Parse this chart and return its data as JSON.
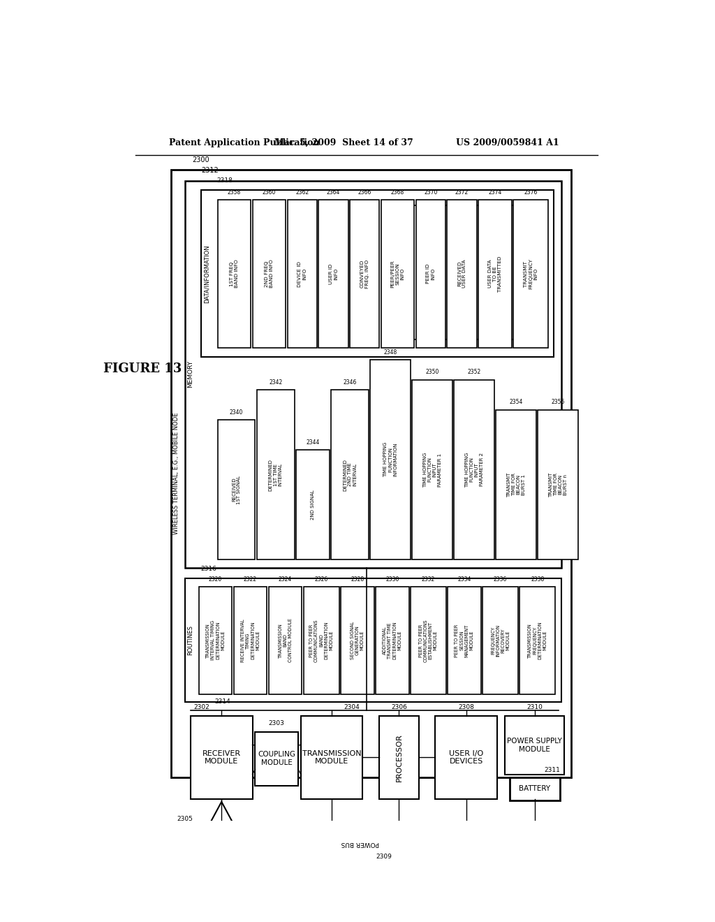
{
  "title_left": "Patent Application Publication",
  "title_mid": "Mar. 5, 2009  Sheet 14 of 37",
  "title_right": "US 2009/0059841 A1",
  "figure_label": "FIGURE 13",
  "bg_color": "#ffffff"
}
